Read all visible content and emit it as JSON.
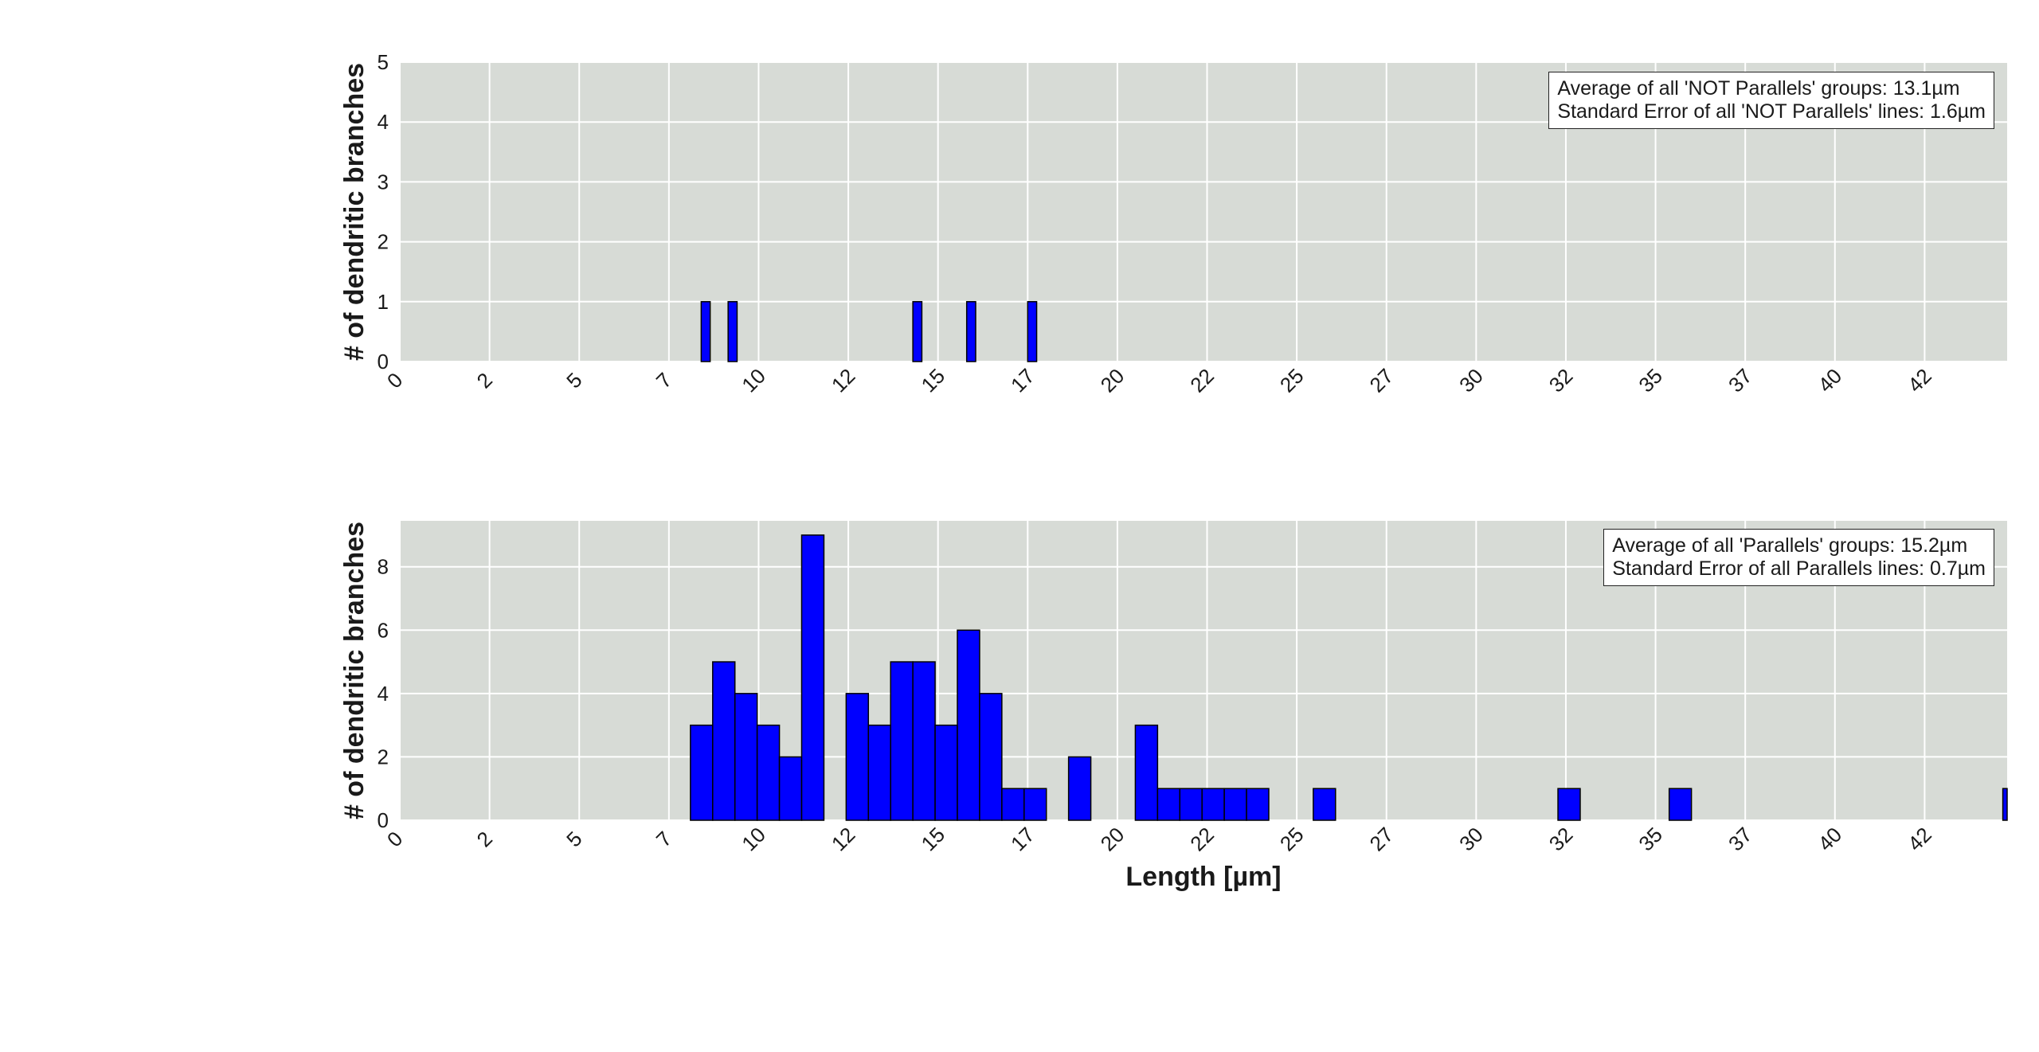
{
  "colors": {
    "plot_background": "#d7dbd6",
    "grid": "#ffffff",
    "bar_fill": "#0000ff",
    "bar_edge": "#000000",
    "text": "#1a1a1a"
  },
  "chart_data": [
    {
      "type": "bar",
      "ylabel": "# of dendritic branches",
      "xlabel": "",
      "xlim": [
        0,
        44.8
      ],
      "ylim": [
        0,
        5
      ],
      "yticks": [
        0,
        1,
        2,
        3,
        4,
        5
      ],
      "xtick_positions": [
        0,
        2.5,
        5,
        7.5,
        10,
        12.5,
        15,
        17.5,
        20,
        22.5,
        25,
        27.5,
        30,
        32.5,
        35,
        37.5,
        40,
        42.5
      ],
      "xtick_labels": [
        "0",
        "2",
        "5",
        "7",
        "10",
        "12",
        "15",
        "17",
        "20",
        "22",
        "25",
        "27",
        "30",
        "32",
        "35",
        "37",
        "40",
        "42"
      ],
      "bars": [
        {
          "x0": 8.4,
          "x1": 8.65,
          "value": 1
        },
        {
          "x0": 9.15,
          "x1": 9.4,
          "value": 1
        },
        {
          "x0": 14.3,
          "x1": 14.55,
          "value": 1
        },
        {
          "x0": 15.8,
          "x1": 16.05,
          "value": 1
        },
        {
          "x0": 17.5,
          "x1": 17.75,
          "value": 1
        }
      ],
      "annotation": [
        "Average of all 'NOT Parallels' groups: 13.1µm",
        "Standard Error of all 'NOT Parallels' lines: 1.6µm"
      ],
      "legend_position": "top-right",
      "grid": true
    },
    {
      "type": "bar",
      "ylabel": "# of dendritic branches",
      "xlabel": "Length [µm]",
      "xlim": [
        0,
        44.8
      ],
      "ylim": [
        0,
        9.45
      ],
      "yticks": [
        0,
        2,
        4,
        6,
        8
      ],
      "xtick_positions": [
        0,
        2.5,
        5,
        7.5,
        10,
        12.5,
        15,
        17.5,
        20,
        22.5,
        25,
        27.5,
        30,
        32.5,
        35,
        37.5,
        40,
        42.5
      ],
      "xtick_labels": [
        "0",
        "2",
        "5",
        "7",
        "10",
        "12",
        "15",
        "17",
        "20",
        "22",
        "25",
        "27",
        "30",
        "32",
        "35",
        "37",
        "40",
        "42"
      ],
      "bin_width": 0.62,
      "bin_start": 8.1,
      "bars": [
        {
          "bin": 0,
          "value": 3
        },
        {
          "bin": 1,
          "value": 5
        },
        {
          "bin": 2,
          "value": 4
        },
        {
          "bin": 3,
          "value": 3
        },
        {
          "bin": 4,
          "value": 2
        },
        {
          "bin": 5,
          "value": 9
        },
        {
          "bin": 7,
          "value": 4
        },
        {
          "bin": 8,
          "value": 3
        },
        {
          "bin": 9,
          "value": 5
        },
        {
          "bin": 10,
          "value": 5
        },
        {
          "bin": 11,
          "value": 3
        },
        {
          "bin": 12,
          "value": 6
        },
        {
          "bin": 13,
          "value": 4
        },
        {
          "bin": 14,
          "value": 1
        },
        {
          "bin": 15,
          "value": 1
        },
        {
          "bin": 17,
          "value": 2
        },
        {
          "bin": 20,
          "value": 3
        },
        {
          "bin": 21,
          "value": 1
        },
        {
          "bin": 22,
          "value": 1
        },
        {
          "bin": 23,
          "value": 1
        },
        {
          "bin": 24,
          "value": 1
        },
        {
          "bin": 25,
          "value": 1
        },
        {
          "bin": 28,
          "value": 1
        },
        {
          "bin": 39,
          "value": 1
        },
        {
          "bin": 44,
          "value": 1
        },
        {
          "bin": 59,
          "value": 1
        }
      ],
      "annotation": [
        "Average of all 'Parallels' groups: 15.2µm",
        "Standard Error of all Parallels lines: 0.7µm"
      ],
      "legend_position": "top-right",
      "grid": true
    }
  ]
}
